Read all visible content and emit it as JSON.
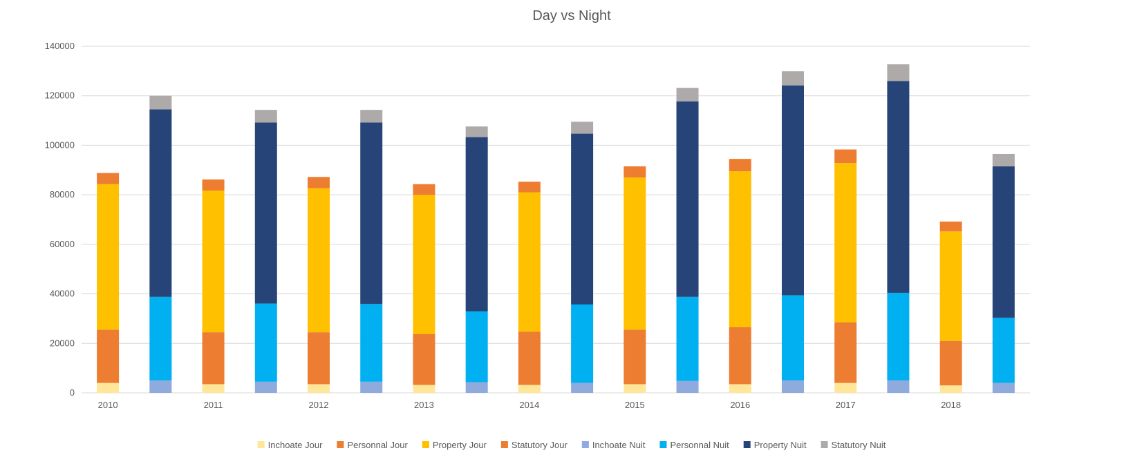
{
  "chart_data": {
    "type": "bar",
    "stacked": true,
    "title": "Day vs Night",
    "xlabel": "",
    "ylabel": "",
    "ylim": [
      0,
      140000
    ],
    "yticks": [
      "0",
      "20000",
      "40000",
      "60000",
      "80000",
      "100000",
      "120000",
      "140000"
    ],
    "grid": true,
    "legend_position": "bottom",
    "categories": [
      "2010",
      "2011",
      "2012",
      "2013",
      "2014",
      "2015",
      "2016",
      "2017",
      "2018"
    ],
    "groups": [
      {
        "key": "jour",
        "series": [
          {
            "name": "Inchoate Jour",
            "color": "#ffe699",
            "values": [
              4000,
              3500,
              3500,
              3200,
              3200,
              3500,
              3500,
              4000,
              3000
            ]
          },
          {
            "name": "Personnal Jour",
            "color": "#ed7d31",
            "values": [
              21500,
              21000,
              21000,
              20500,
              21500,
              22000,
              23000,
              24500,
              18000
            ]
          },
          {
            "name": "Property Jour",
            "color": "#ffc000",
            "values": [
              58800,
              57200,
              58200,
              56300,
              56300,
              61500,
              63000,
              64300,
              44200
            ]
          },
          {
            "name": "Statutory Jour",
            "color": "#ed7d31",
            "values": [
              4500,
              4500,
              4500,
              4300,
              4300,
              4500,
              5000,
              5500,
              4000
            ]
          }
        ]
      },
      {
        "key": "nuit",
        "series": [
          {
            "name": "Inchoate Nuit",
            "color": "#8faadc",
            "values": [
              5000,
              4500,
              4500,
              4300,
              4000,
              4800,
              5000,
              5000,
              4000
            ]
          },
          {
            "name": "Personnal Nuit",
            "color": "#00b0f0",
            "values": [
              33800,
              31600,
              31400,
              28600,
              31700,
              34000,
              34400,
              35400,
              26300
            ]
          },
          {
            "name": "Property Nuit",
            "color": "#264478",
            "values": [
              75700,
              73100,
              73300,
              70400,
              69000,
              78900,
              84800,
              85600,
              61200
            ]
          },
          {
            "name": "Statutory Nuit",
            "color": "#aeaaaa",
            "values": [
              5500,
              5100,
              5100,
              4300,
              4800,
              5500,
              5700,
              6700,
              5000
            ]
          }
        ]
      }
    ]
  }
}
